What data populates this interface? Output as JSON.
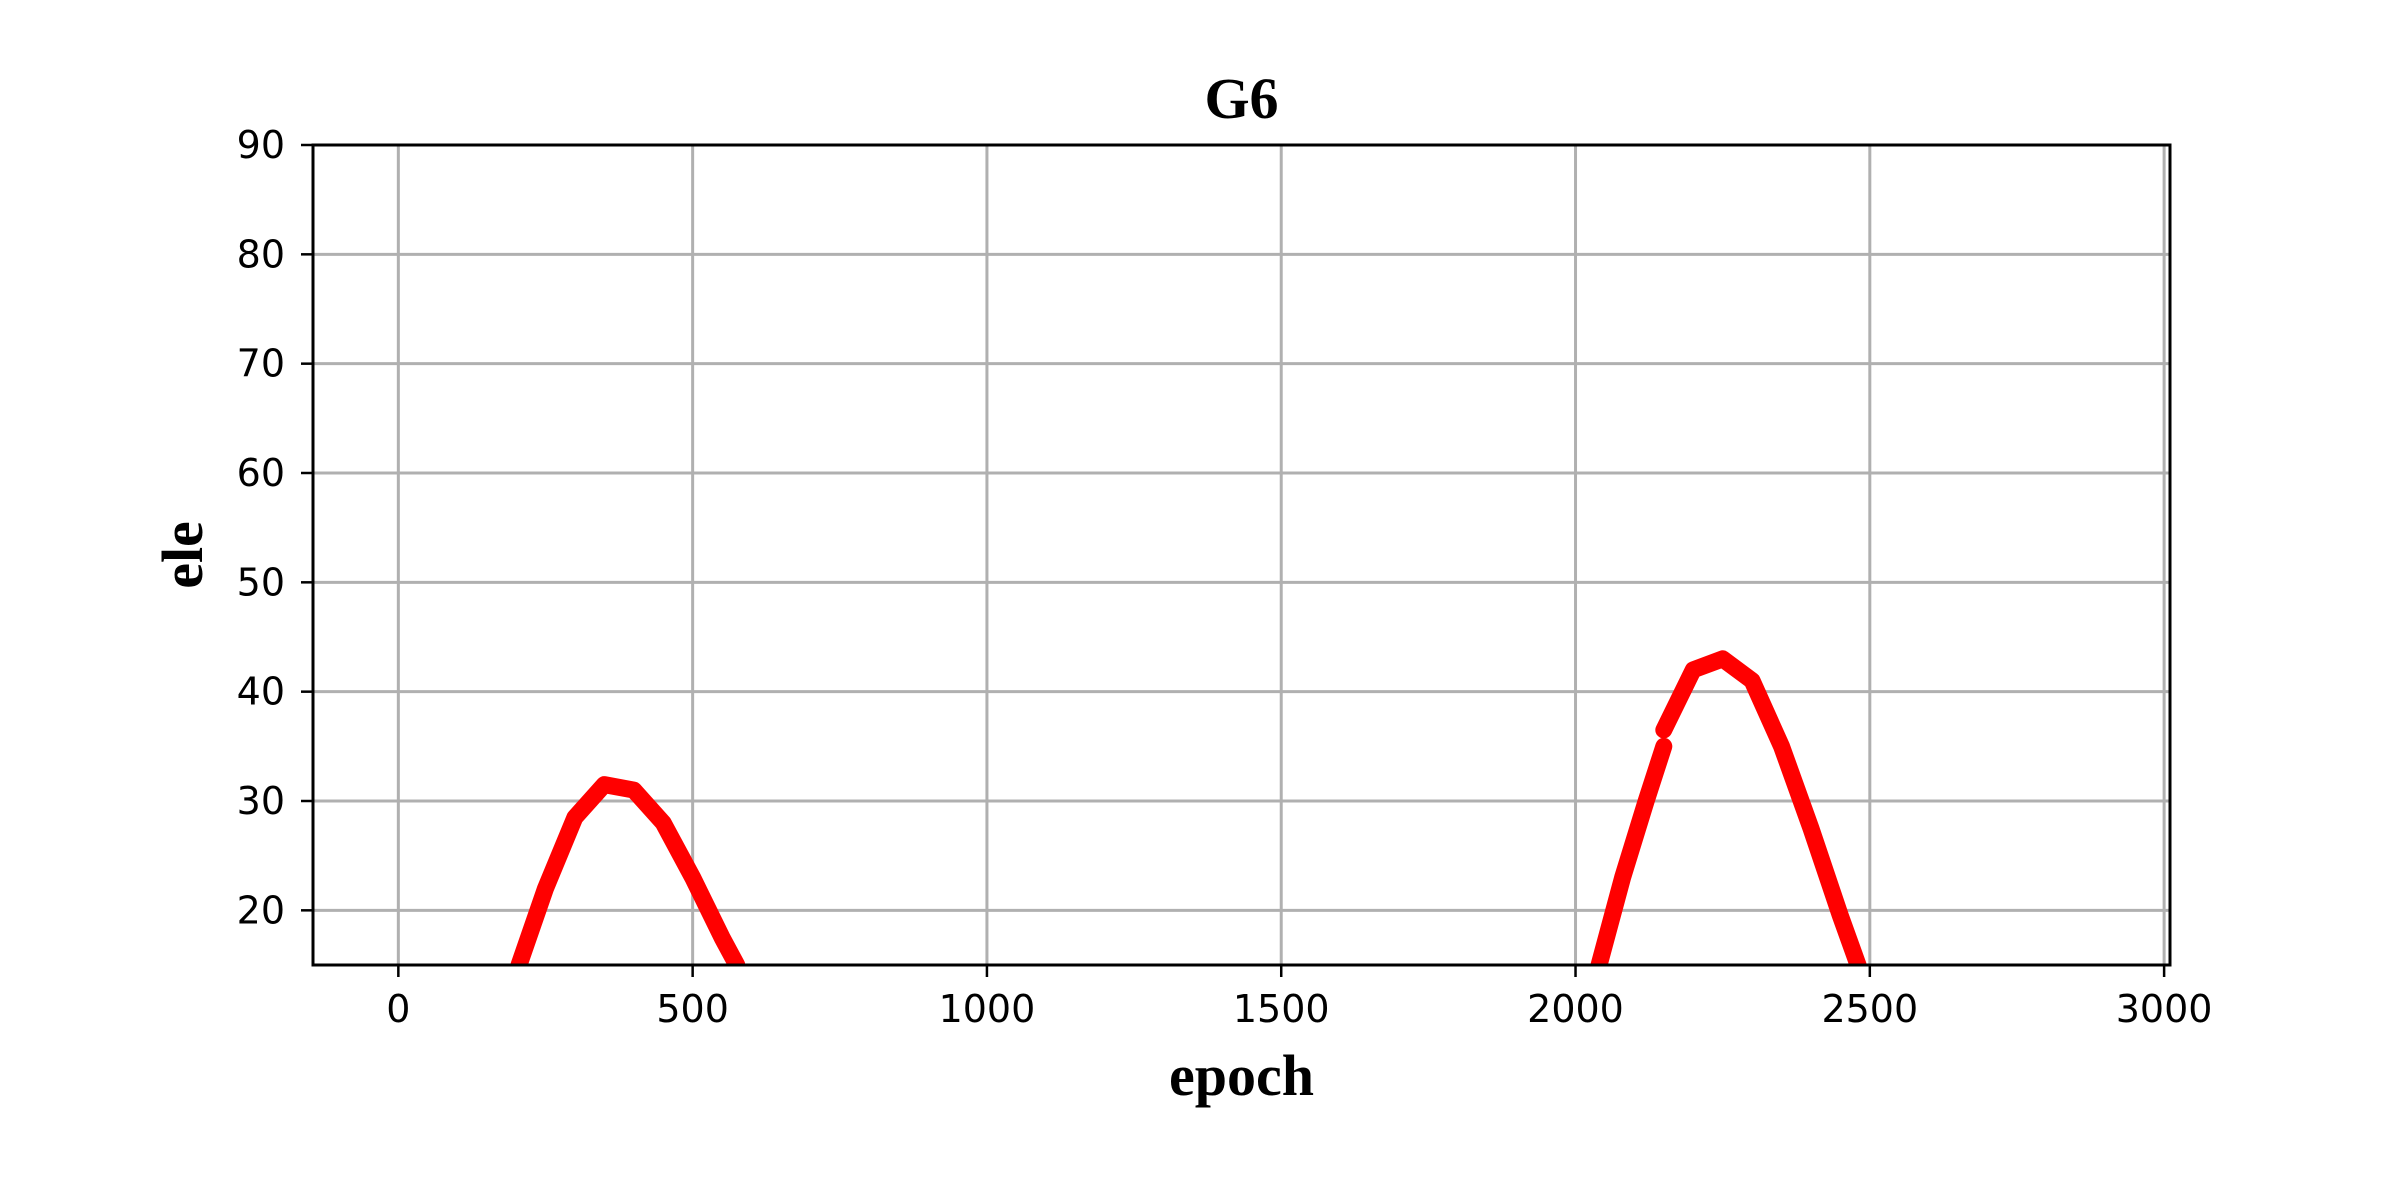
{
  "chart_data": {
    "type": "scatter",
    "title": "G6",
    "xlabel": "epoch",
    "ylabel": "ele",
    "xlim": [
      -145,
      3010
    ],
    "ylim": [
      15,
      90
    ],
    "xticks": [
      0,
      500,
      1000,
      1500,
      2000,
      2500,
      3000
    ],
    "yticks": [
      20,
      30,
      40,
      50,
      60,
      70,
      80,
      90
    ],
    "grid": true,
    "color": "#ff0000",
    "marker": "dense dots",
    "segments": [
      {
        "x": [
          205,
          250,
          300,
          350,
          400,
          450,
          500,
          550,
          575
        ],
        "y": [
          15,
          22,
          28.5,
          31.5,
          31,
          28,
          23,
          17.5,
          15
        ]
      },
      {
        "x": [
          2040,
          2080,
          2120,
          2150
        ],
        "y": [
          15,
          23,
          30,
          35
        ]
      },
      {
        "x": [
          2150,
          2200,
          2250,
          2300,
          2350,
          2400,
          2450,
          2480
        ],
        "y": [
          36.5,
          42,
          43,
          41,
          35,
          27.5,
          19.5,
          15
        ]
      }
    ]
  }
}
